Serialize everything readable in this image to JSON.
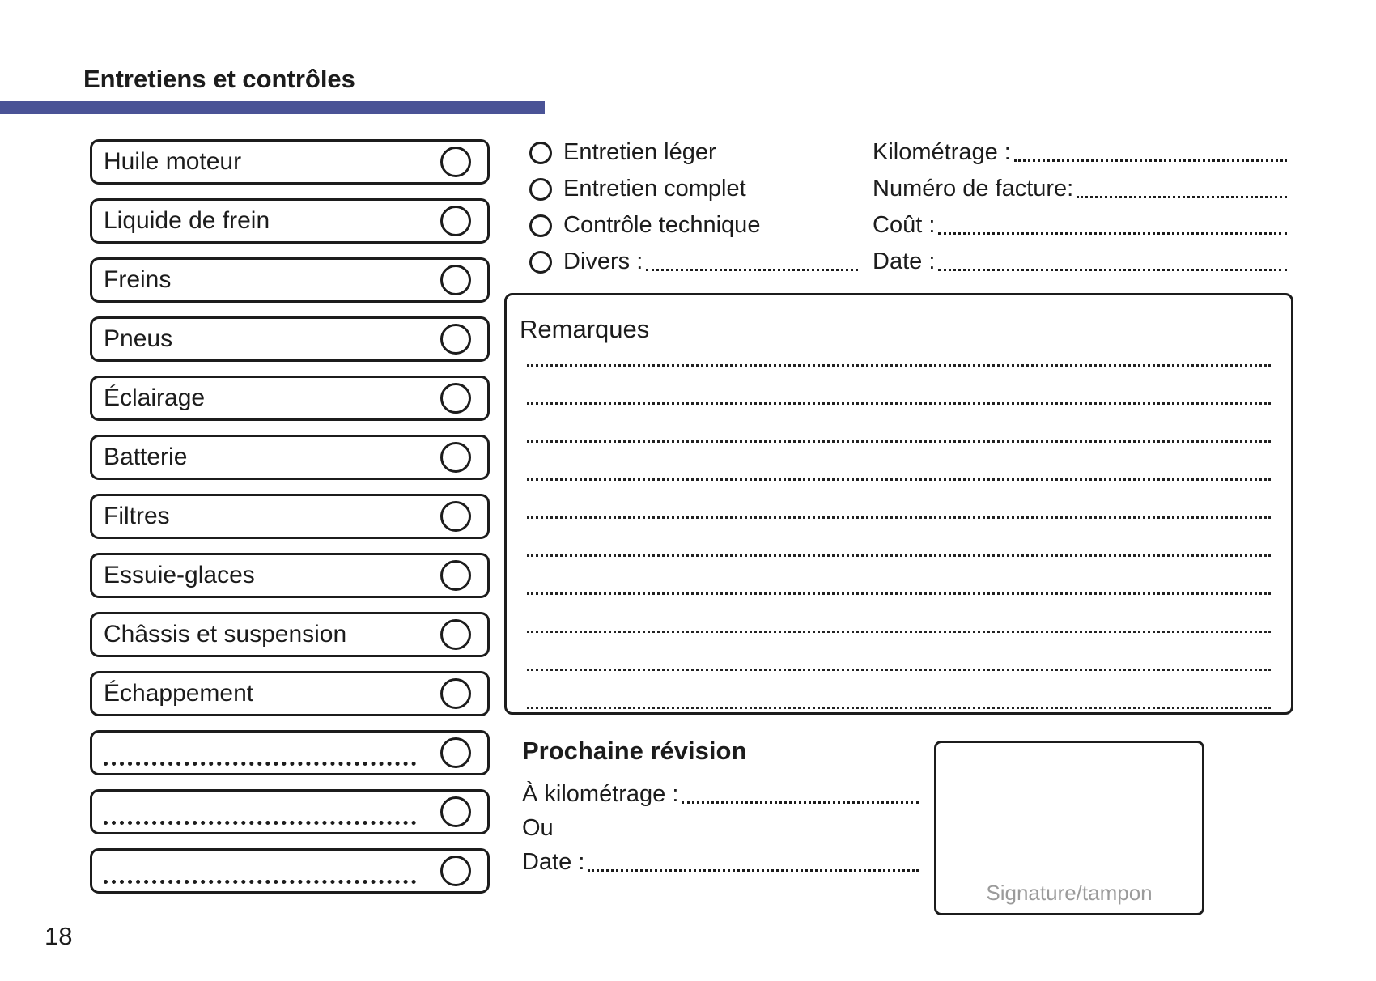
{
  "page": {
    "title": "Entretiens et contrôles",
    "number": "18"
  },
  "colors": {
    "accent_bar": "#4a5396",
    "ink": "#1c1c1c",
    "signature_gray": "#9b9b9b"
  },
  "checklist": {
    "items": [
      {
        "label": "Huile moteur",
        "blank": false
      },
      {
        "label": "Liquide de frein",
        "blank": false
      },
      {
        "label": "Freins",
        "blank": false
      },
      {
        "label": "Pneus",
        "blank": false
      },
      {
        "label": "Éclairage",
        "blank": false
      },
      {
        "label": "Batterie",
        "blank": false
      },
      {
        "label": "Filtres",
        "blank": false
      },
      {
        "label": "Essuie-glaces",
        "blank": false
      },
      {
        "label": "Châssis et suspension",
        "blank": false
      },
      {
        "label": "Échappement",
        "blank": false
      },
      {
        "label": "",
        "blank": true
      },
      {
        "label": "",
        "blank": true
      },
      {
        "label": "",
        "blank": true
      }
    ]
  },
  "service_type": {
    "options": [
      {
        "label": "Entretien léger",
        "has_leader": false
      },
      {
        "label": "Entretien complet",
        "has_leader": false
      },
      {
        "label": "Contrôle technique",
        "has_leader": false
      },
      {
        "label": "Divers :",
        "has_leader": true
      }
    ]
  },
  "invoice_fields": {
    "rows": [
      {
        "label": "Kilométrage :"
      },
      {
        "label": "Numéro de facture:"
      },
      {
        "label": "Coût :"
      },
      {
        "label": "Date :"
      }
    ]
  },
  "remarks": {
    "title": "Remarques",
    "lines_count": 10
  },
  "next_service": {
    "title": "Prochaine révision",
    "km_label": "À kilométrage :",
    "or_label": "Ou",
    "date_label": "Date :"
  },
  "signature": {
    "label": "Signature/tampon"
  }
}
